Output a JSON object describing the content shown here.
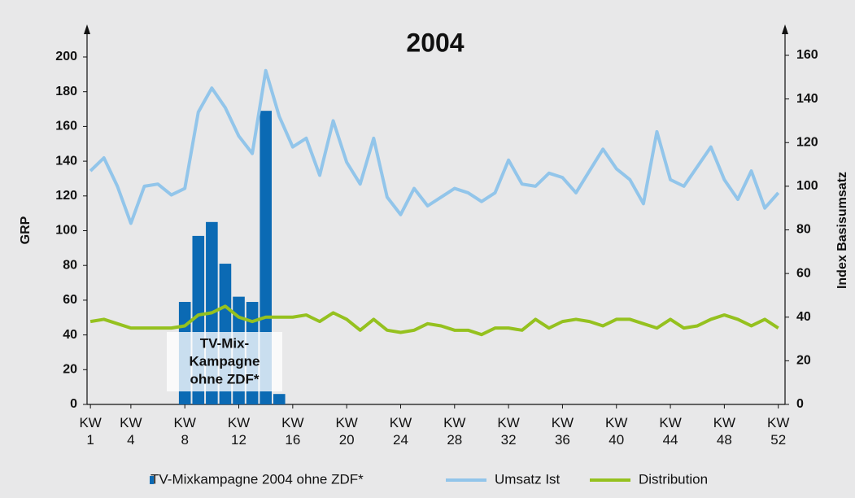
{
  "chart_data": {
    "type": "combo",
    "title": "2004",
    "y_label": "GRP",
    "y2_label": "Index Basisumsatz",
    "x": [
      1,
      2,
      3,
      4,
      5,
      6,
      7,
      8,
      9,
      10,
      11,
      12,
      13,
      14,
      15,
      16,
      17,
      18,
      19,
      20,
      21,
      22,
      23,
      24,
      25,
      26,
      27,
      28,
      29,
      30,
      31,
      32,
      33,
      34,
      35,
      36,
      37,
      38,
      39,
      40,
      41,
      42,
      43,
      44,
      45,
      46,
      47,
      48,
      49,
      50,
      51,
      52
    ],
    "xlim": [
      0.75,
      52.5
    ],
    "xticks": [
      {
        "value": 1,
        "label": "KW 1"
      },
      {
        "value": 4,
        "label": "KW 4"
      },
      {
        "value": 8,
        "label": "KW 8"
      },
      {
        "value": 12,
        "label": "KW 12"
      },
      {
        "value": 16,
        "label": "KW 16"
      },
      {
        "value": 20,
        "label": "KW 20"
      },
      {
        "value": 24,
        "label": "KW 24"
      },
      {
        "value": 28,
        "label": "KW 28"
      },
      {
        "value": 32,
        "label": "KW 32"
      },
      {
        "value": 36,
        "label": "KW 36"
      },
      {
        "value": 40,
        "label": "KW 40"
      },
      {
        "value": 44,
        "label": "KW 44"
      },
      {
        "value": 48,
        "label": "KW 48"
      },
      {
        "value": 52,
        "label": "KW 52"
      }
    ],
    "ylim": [
      0,
      200
    ],
    "yticks": [
      0,
      20,
      40,
      60,
      80,
      100,
      120,
      140,
      160,
      180,
      200
    ],
    "y2lim": [
      0,
      160
    ],
    "y2ticks": [
      0,
      20,
      40,
      60,
      80,
      100,
      120,
      140,
      160
    ],
    "series": [
      {
        "name": "TV-Mixkampagne 2004 ohne ZDF*",
        "type": "bar",
        "color": "#0b6ab4",
        "values": [
          null,
          null,
          null,
          null,
          null,
          null,
          null,
          59,
          97,
          105,
          81,
          62,
          59,
          169,
          6,
          null,
          null,
          null,
          null,
          null,
          null,
          null,
          null,
          null,
          null,
          null,
          null,
          null,
          null,
          null,
          null,
          null,
          null,
          null,
          null,
          null,
          null,
          null,
          null,
          null,
          null,
          null,
          null,
          null,
          null,
          null,
          null,
          null,
          null,
          null,
          null,
          null
        ]
      },
      {
        "name": "Umsatz Ist",
        "type": "line",
        "axis": "y2",
        "color": "#92c5ea",
        "values": [
          107,
          113,
          100,
          83,
          100,
          101,
          96,
          99,
          134,
          145,
          136,
          123,
          115,
          153,
          132,
          118,
          122,
          105,
          130,
          111,
          101,
          122,
          95,
          87,
          99,
          91,
          95,
          99,
          97,
          93,
          97,
          112,
          101,
          100,
          106,
          104,
          97,
          107,
          117,
          108,
          103,
          92,
          125,
          103,
          100,
          109,
          118,
          103,
          94,
          107,
          90,
          97
        ]
      },
      {
        "name": "Distribution",
        "type": "line",
        "axis": "y2",
        "color": "#95c11f",
        "values": [
          38,
          39,
          37,
          35,
          35,
          35,
          35,
          36,
          41,
          42,
          45,
          40,
          38,
          40,
          40,
          40,
          41,
          38,
          42,
          39,
          34,
          39,
          34,
          33,
          34,
          37,
          36,
          34,
          34,
          32,
          35,
          35,
          34,
          39,
          35,
          38,
          39,
          38,
          36,
          39,
          39,
          37,
          35,
          39,
          35,
          36,
          39,
          41,
          39,
          36,
          39,
          35
        ]
      }
    ],
    "annotation": [
      "TV-Mix-",
      "Kampagne",
      "ohne ZDF*"
    ]
  }
}
